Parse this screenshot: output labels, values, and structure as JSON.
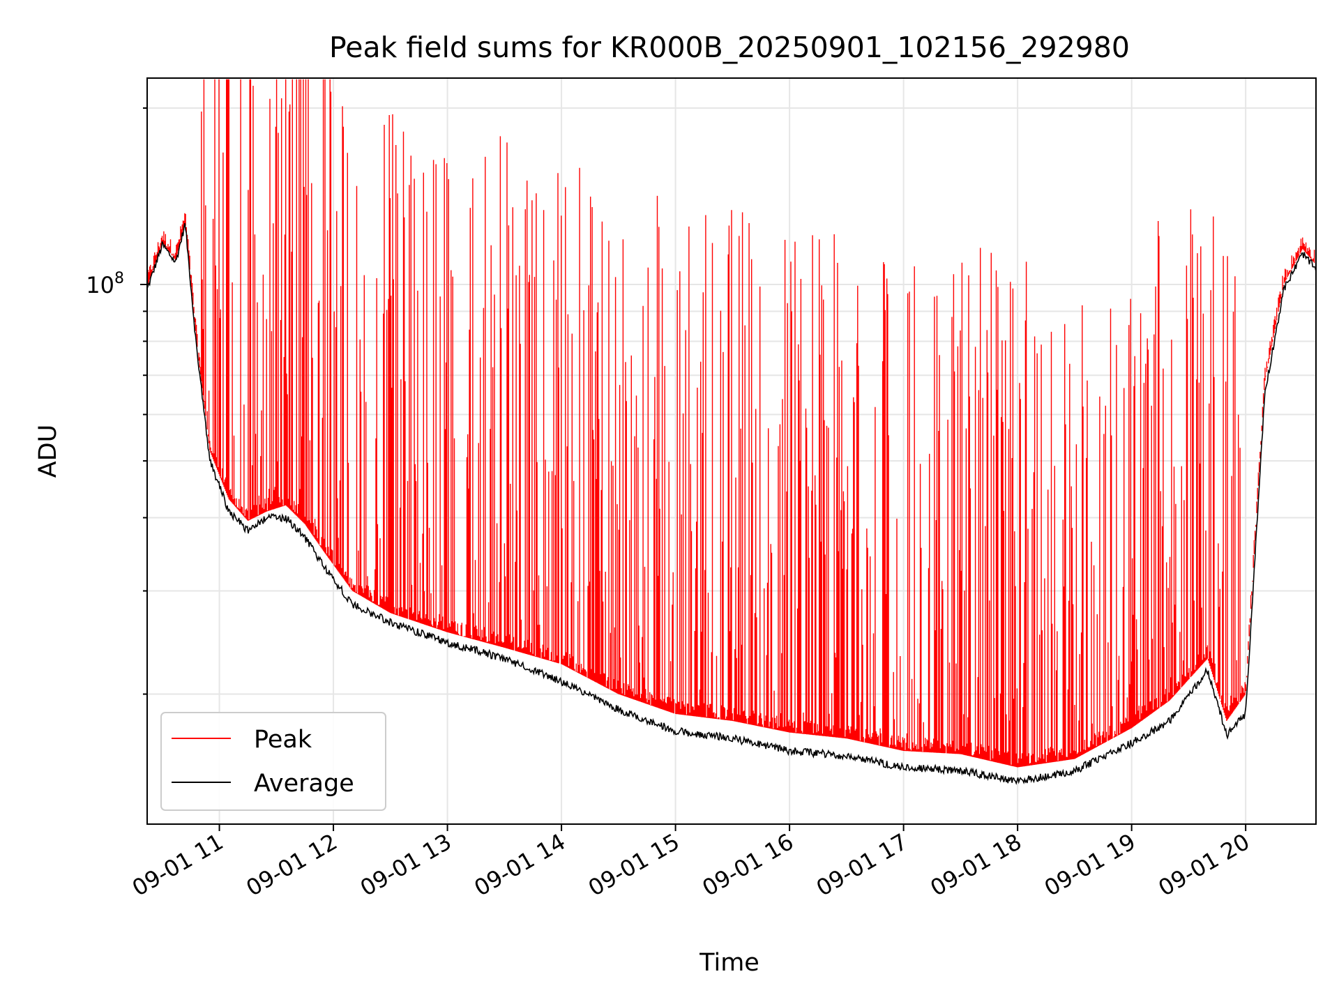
{
  "chart_data": {
    "type": "line",
    "title": "Peak field sums for KR000B_20250901_102156_292980",
    "xlabel": "Time",
    "ylabel": "ADU",
    "y_scale": "log",
    "ylim": [
      12000000,
      225000000
    ],
    "xlim": [
      "2025-09-01 10:22",
      "2025-09-01 20:37"
    ],
    "x_tick_labels": [
      "09-01 11",
      "09-01 12",
      "09-01 13",
      "09-01 14",
      "09-01 15",
      "09-01 16",
      "09-01 17",
      "09-01 18",
      "09-01 19",
      "09-01 20"
    ],
    "x_tick_rotation": 30,
    "y_major_tick_base": "10",
    "y_major_tick_exp": "8",
    "grid": true,
    "legend_position": "lower-left",
    "series": [
      {
        "name": "Peak",
        "color": "#ff0000",
        "description_pattern": "dense red traces with many spikes above the average baseline",
        "time": [
          "10:22",
          "10:30",
          "10:37",
          "10:42",
          "10:48",
          "10:55",
          "11:05",
          "11:15",
          "11:25",
          "11:35",
          "11:45",
          "11:55",
          "12:10",
          "12:30",
          "13:00",
          "13:30",
          "14:00",
          "14:30",
          "15:00",
          "15:30",
          "16:00",
          "16:30",
          "17:00",
          "17:30",
          "18:00",
          "18:30",
          "19:00",
          "19:20",
          "19:40",
          "19:50",
          "20:00",
          "20:10",
          "20:20",
          "20:30",
          "20:37"
        ],
        "values": [
          99000000,
          118000000,
          110000000,
          128000000,
          80000000,
          52000000,
          43000000,
          39500000,
          41000000,
          42000000,
          39000000,
          35000000,
          30000000,
          27500000,
          25500000,
          24000000,
          22500000,
          20000000,
          18500000,
          18000000,
          17200000,
          16800000,
          16000000,
          15800000,
          15000000,
          15500000,
          17500000,
          19500000,
          23000000,
          18000000,
          20000000,
          68000000,
          100000000,
          115000000,
          108000000
        ]
      },
      {
        "name": "Average",
        "color": "#000000",
        "time": [
          "10:22",
          "10:30",
          "10:37",
          "10:42",
          "10:48",
          "10:55",
          "11:05",
          "11:15",
          "11:25",
          "11:35",
          "11:45",
          "11:55",
          "12:10",
          "12:30",
          "13:00",
          "13:30",
          "14:00",
          "14:30",
          "15:00",
          "15:30",
          "16:00",
          "16:30",
          "17:00",
          "17:30",
          "18:00",
          "18:30",
          "19:00",
          "19:20",
          "19:40",
          "19:50",
          "20:00",
          "20:10",
          "20:20",
          "20:30",
          "20:37"
        ],
        "values": [
          98000000,
          117000000,
          109000000,
          127000000,
          78000000,
          50000000,
          41000000,
          38000000,
          40000000,
          40000000,
          37000000,
          33000000,
          28500000,
          26500000,
          24500000,
          23000000,
          21000000,
          18800000,
          17300000,
          16800000,
          16000000,
          15700000,
          15000000,
          14800000,
          14200000,
          14800000,
          16500000,
          18000000,
          22000000,
          17000000,
          18500000,
          65000000,
          98000000,
          113000000,
          106000000
        ]
      }
    ]
  }
}
